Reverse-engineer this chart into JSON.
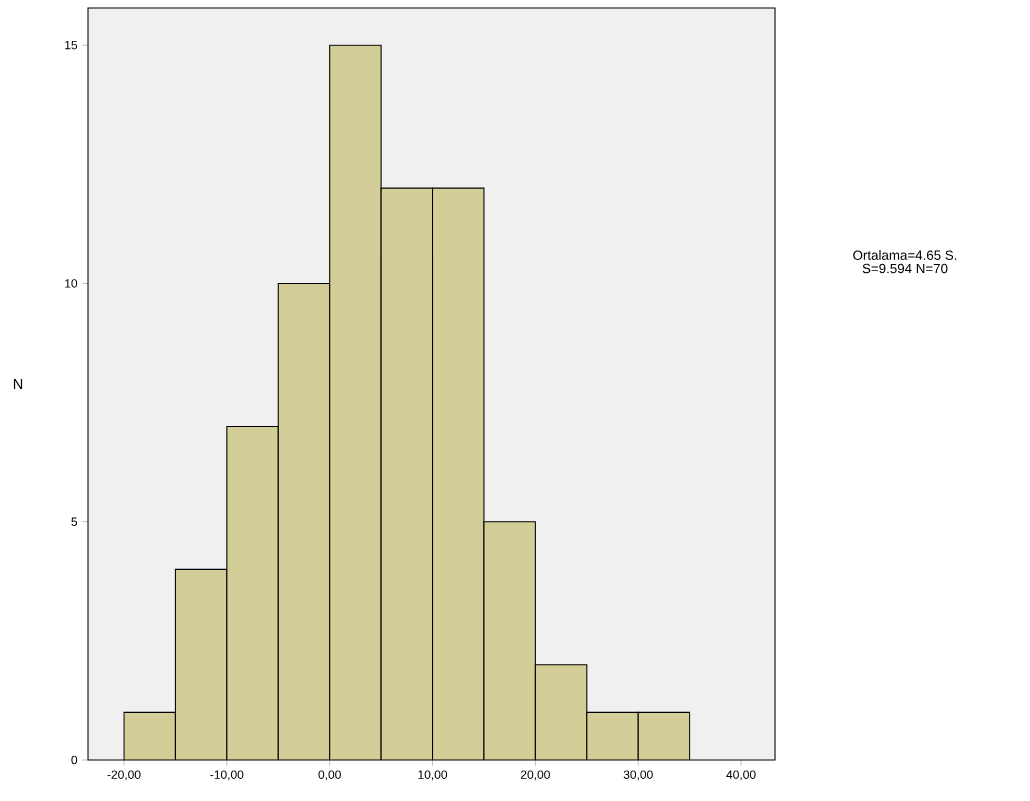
{
  "chart_data": {
    "type": "histogram",
    "ylabel": "N",
    "bins": [
      -20,
      -15,
      -10,
      -5,
      0,
      5,
      10,
      15,
      20,
      25,
      30,
      35
    ],
    "values": [
      1,
      4,
      7,
      10,
      15,
      12,
      12,
      5,
      2,
      1,
      1
    ],
    "color": "#d3ce98",
    "xlim": [
      -23.5,
      43.3
    ],
    "ylim": [
      0,
      15.78
    ],
    "xticks": [
      {
        "value": -20,
        "label": "-20,00"
      },
      {
        "value": -10,
        "label": "-10,00"
      },
      {
        "value": 0,
        "label": "0,00"
      },
      {
        "value": 10,
        "label": "10,00"
      },
      {
        "value": 20,
        "label": "20,00"
      },
      {
        "value": 30,
        "label": "30,00"
      },
      {
        "value": 40,
        "label": "40,00"
      }
    ],
    "yticks": [
      0,
      5,
      10,
      15
    ],
    "annotations": [
      "Ortalama=4.65 S.",
      "S=9.594 N=70"
    ]
  }
}
